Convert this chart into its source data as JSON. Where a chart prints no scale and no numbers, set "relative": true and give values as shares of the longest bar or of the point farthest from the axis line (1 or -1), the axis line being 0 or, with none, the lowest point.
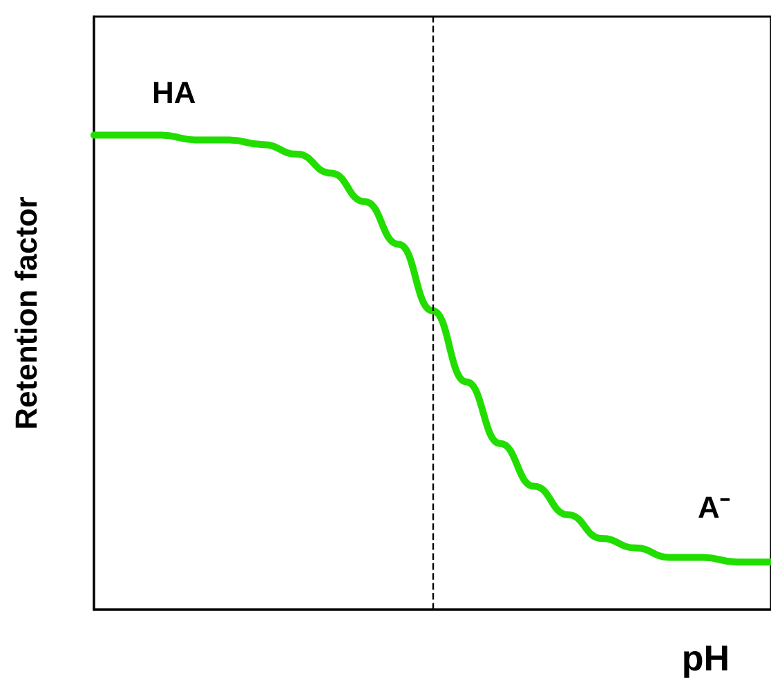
{
  "chart_data": {
    "type": "line",
    "relative": true,
    "xlabel": "pH",
    "ylabel": "Retention factor",
    "categories": [
      null,
      null,
      null,
      null,
      null,
      null,
      null,
      null,
      null,
      null,
      null,
      null,
      null,
      null,
      null,
      null,
      null,
      null,
      null,
      null,
      null
    ],
    "series": [
      {
        "color": "#22dd00",
        "values": [
          1,
          1,
          1,
          0.99,
          0.99,
          0.98,
          0.96,
          0.92,
          0.86,
          0.77,
          0.63,
          0.48,
          0.35,
          0.26,
          0.2,
          0.15,
          0.13,
          0.11,
          0.11,
          0.1,
          0.1
        ]
      }
    ],
    "annotations": [
      "HA",
      "A⁻"
    ],
    "tick_labels": false,
    "grid": false,
    "marker": "none",
    "line_style": "solid"
  }
}
